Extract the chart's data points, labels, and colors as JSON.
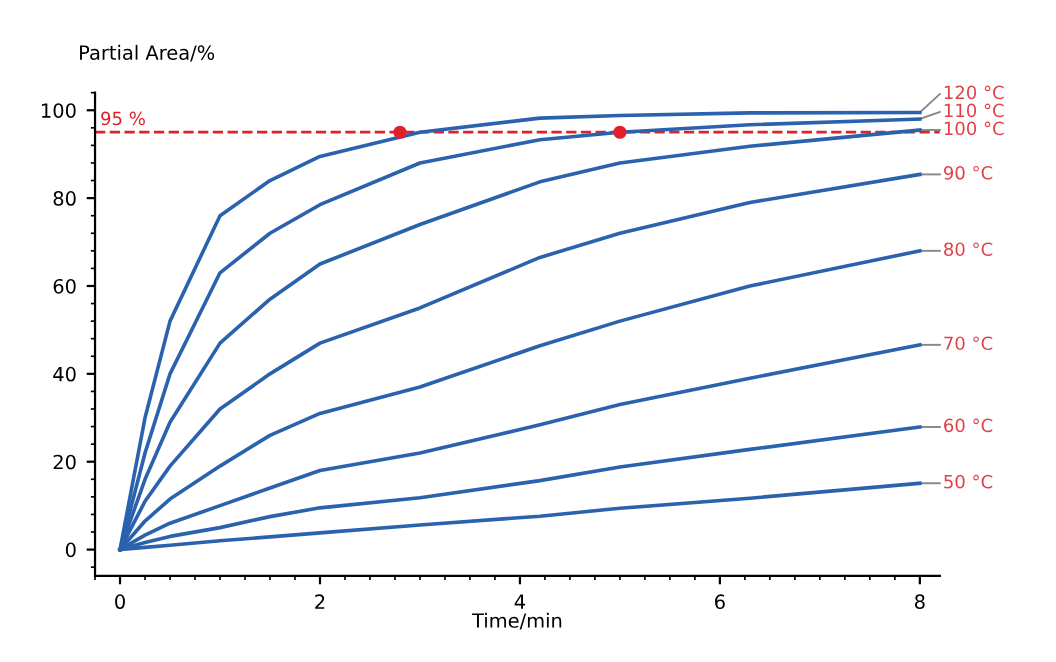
{
  "chart_data": {
    "type": "line",
    "xlabel": "Time/min",
    "ylabel": "Partial Area/%",
    "xlim": [
      -0.25,
      8.2
    ],
    "ylim": [
      -6,
      104
    ],
    "xticks": [
      0,
      2,
      4,
      6,
      8
    ],
    "yticks": [
      0,
      20,
      40,
      60,
      80,
      100
    ],
    "grid": false,
    "marker": "none",
    "line_style": "solid",
    "x": [
      0,
      0.25,
      0.5,
      1,
      1.5,
      2,
      3,
      4.2,
      5,
      6.3,
      8
    ],
    "series": [
      {
        "name": "120 °C",
        "color": "#2a62ad",
        "values": [
          0,
          30,
          52,
          76,
          84,
          89.5,
          95,
          98.2,
          98.8,
          99.4,
          99.5
        ]
      },
      {
        "name": "110 °C",
        "color": "#2a62ad",
        "values": [
          0,
          22,
          40,
          63,
          72,
          78.5,
          88,
          93.3,
          95,
          96.7,
          98
        ]
      },
      {
        "name": "100 °C",
        "color": "#2a62ad",
        "values": [
          0,
          16,
          29,
          47,
          57,
          65,
          74,
          83.7,
          88,
          91.8,
          95.5
        ]
      },
      {
        "name": "90 °C",
        "color": "#2a62ad",
        "values": [
          0,
          11,
          19,
          32,
          40,
          47,
          55,
          66.5,
          72,
          79,
          85.4
        ]
      },
      {
        "name": "80 °C",
        "color": "#2a62ad",
        "values": [
          0,
          6.5,
          11.5,
          19,
          26,
          31,
          37,
          46.4,
          52,
          60,
          68
        ]
      },
      {
        "name": "70 °C",
        "color": "#2a62ad",
        "values": [
          0,
          3.3,
          6,
          10,
          14,
          18,
          22,
          28.4,
          33,
          39,
          46.6
        ]
      },
      {
        "name": "60 °C",
        "color": "#2a62ad",
        "values": [
          0,
          1.6,
          3,
          5,
          7.5,
          9.5,
          11.8,
          15.7,
          18.8,
          22.8,
          27.9
        ]
      },
      {
        "name": "50 °C",
        "color": "#2a62ad",
        "values": [
          0,
          0.5,
          1,
          2,
          2.9,
          3.8,
          5.6,
          7.6,
          9.4,
          11.7,
          15.1
        ]
      },
      {
        "type": "scatter",
        "color": "#e0202a",
        "marker": "circle",
        "x": [
          2.8,
          5
        ],
        "values": [
          95,
          95
        ]
      }
    ],
    "ref_lines": [
      {
        "axis": "y",
        "value": 95,
        "label": "95 %",
        "color": "#e0202a",
        "line_style": "dashed"
      }
    ]
  }
}
